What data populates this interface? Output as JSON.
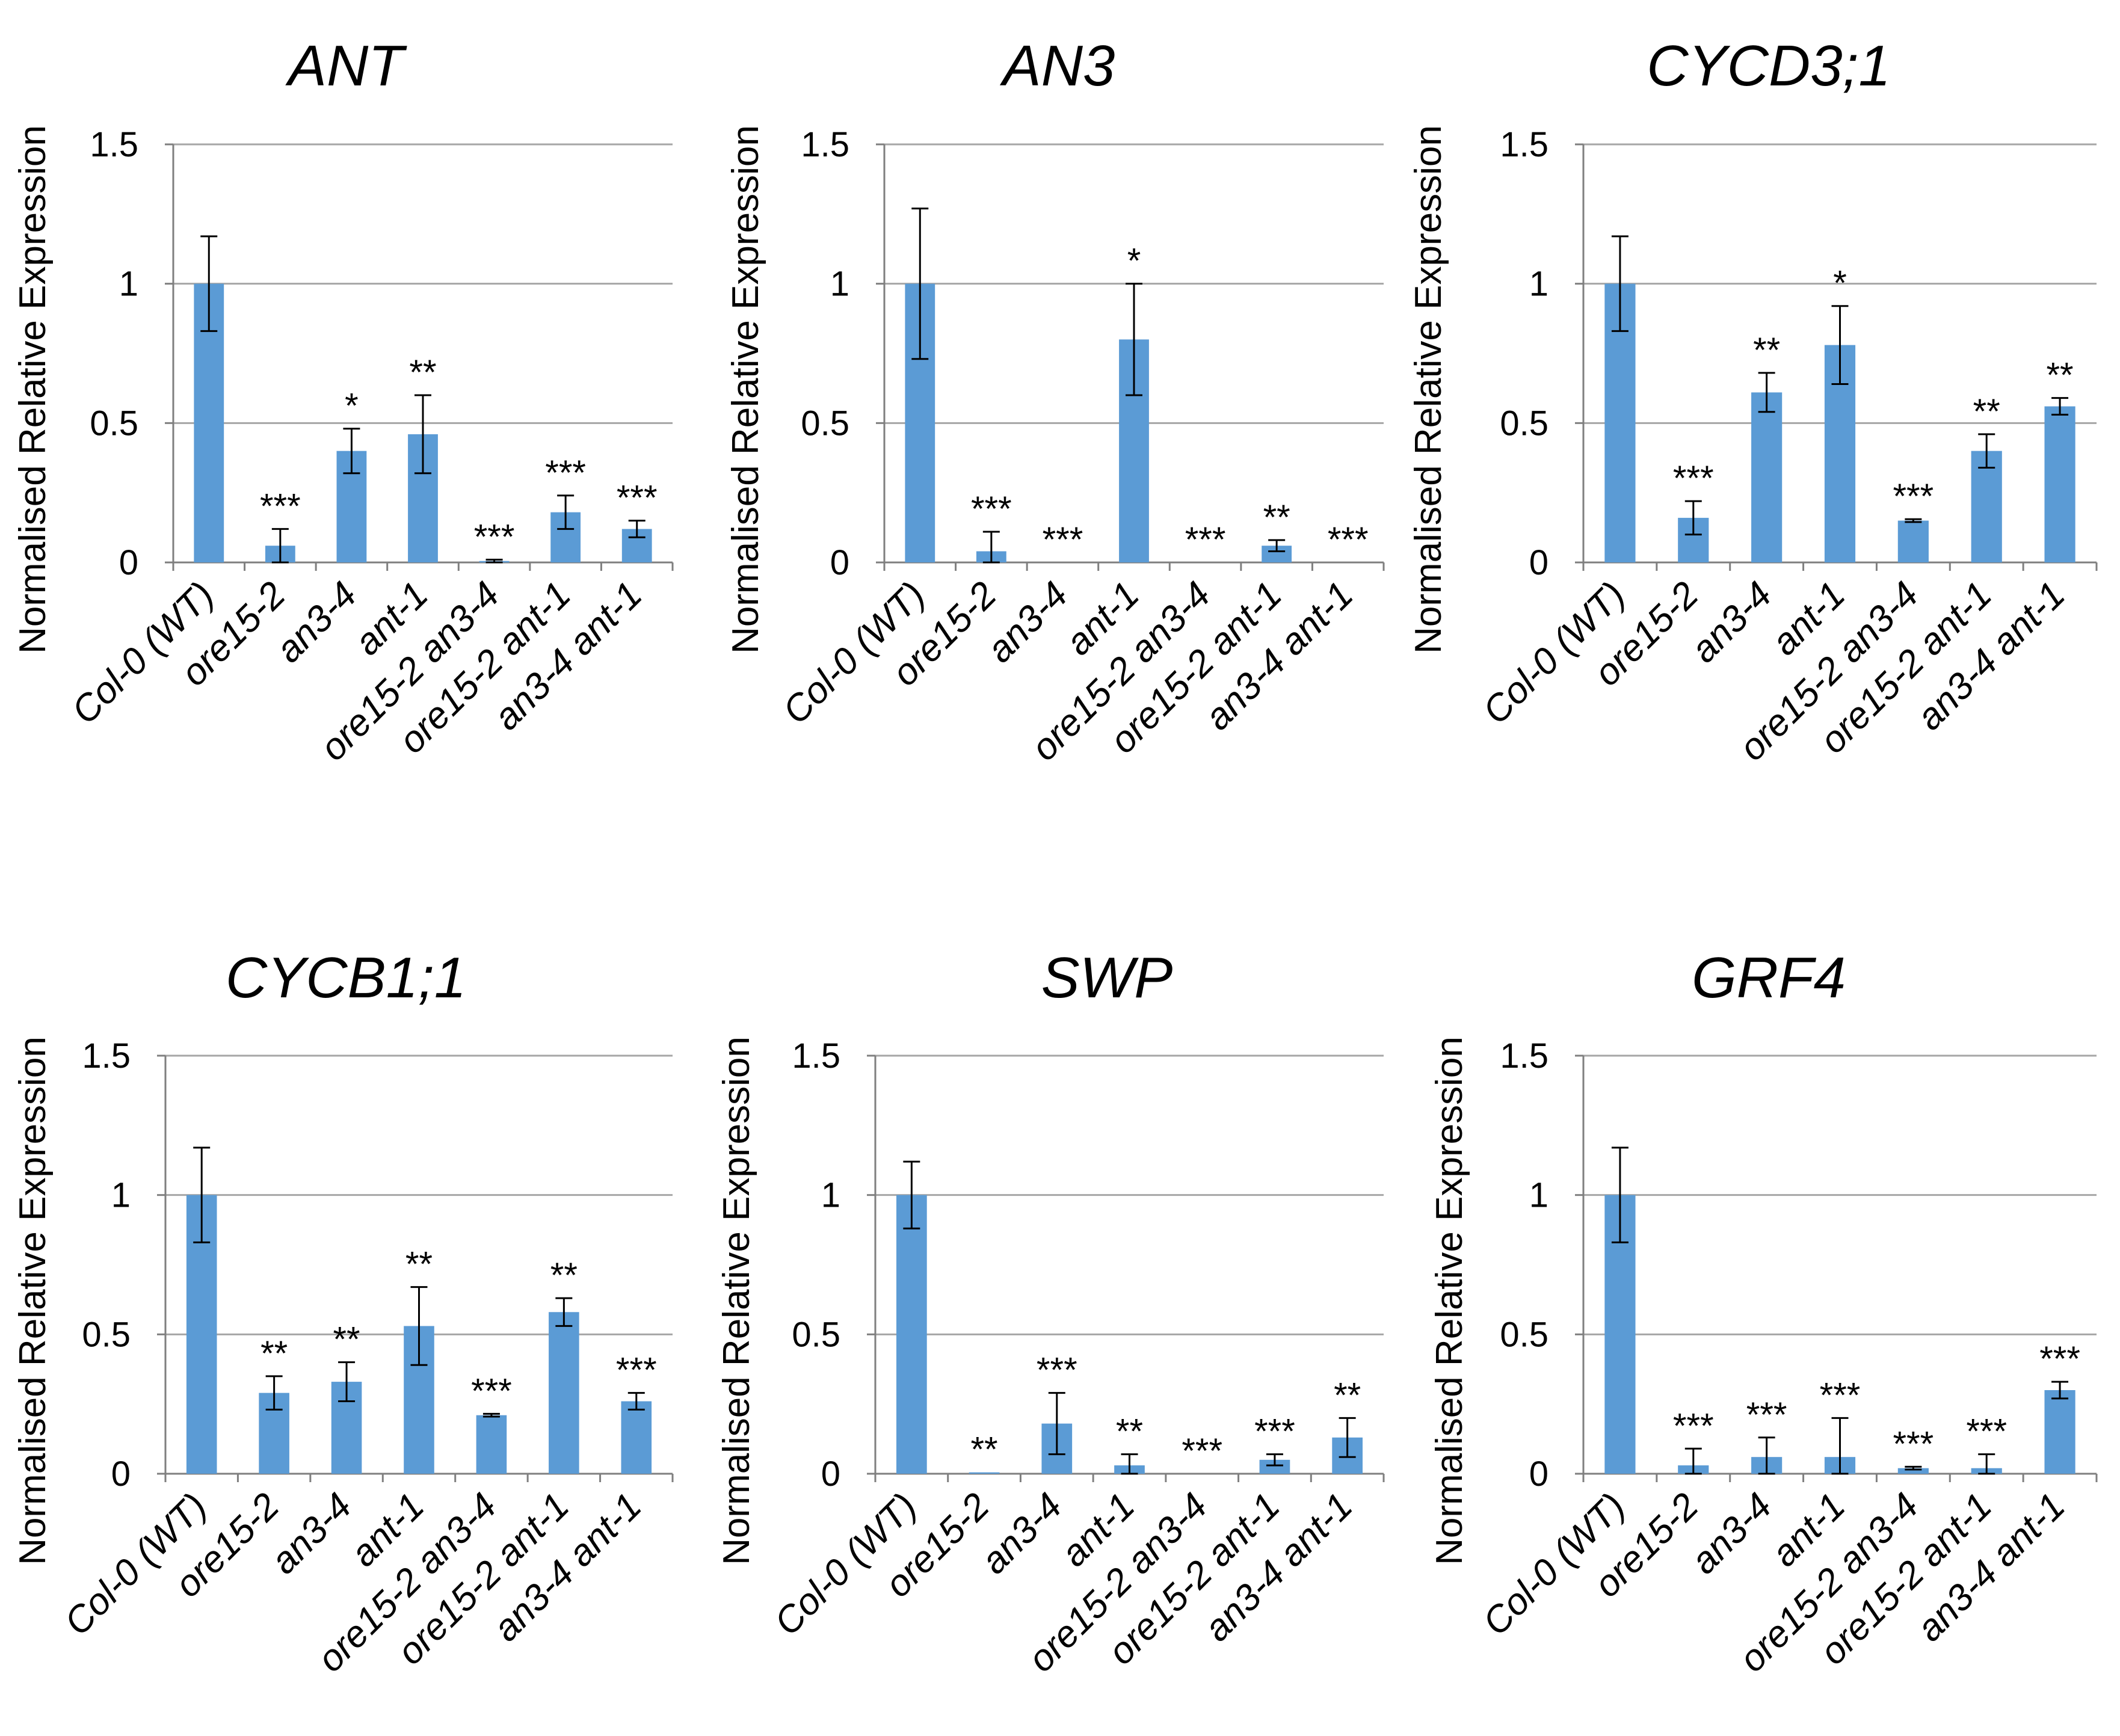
{
  "chart_data": [
    {
      "type": "bar",
      "title": "ANT",
      "ylabel": "Normalised Relative Expression",
      "xlabel": "",
      "ylim": [
        0,
        1.5
      ],
      "yticks": [
        "0",
        "0.5",
        "1",
        "1.5"
      ],
      "categories": [
        "Col-0 (WT)",
        "ore15-2",
        "an3-4",
        "ant-1",
        "ore15-2 an3-4",
        "ore15-2 ant-1",
        "an3-4 ant-1"
      ],
      "values": [
        1.0,
        0.06,
        0.4,
        0.46,
        0.005,
        0.18,
        0.12
      ],
      "errors": [
        0.17,
        0.06,
        0.08,
        0.14,
        0.005,
        0.06,
        0.03
      ],
      "significance": [
        "",
        "***",
        "*",
        "**",
        "***",
        "***",
        "***"
      ],
      "color": "#5b9bd5",
      "grid": true
    },
    {
      "type": "bar",
      "title": "AN3",
      "ylabel": "Normalised Relative Expression",
      "xlabel": "",
      "ylim": [
        0,
        1.5
      ],
      "yticks": [
        "0",
        "0.5",
        "1",
        "1.5"
      ],
      "categories": [
        "Col-0 (WT)",
        "ore15-2",
        "an3-4",
        "ant-1",
        "ore15-2 an3-4",
        "ore15-2 ant-1",
        "an3-4 ant-1"
      ],
      "values": [
        1.0,
        0.04,
        0.0,
        0.8,
        0.0,
        0.06,
        0.0
      ],
      "errors": [
        0.27,
        0.07,
        0.0,
        0.2,
        0.0,
        0.02,
        0.0
      ],
      "significance": [
        "",
        "***",
        "***",
        "*",
        "***",
        "**",
        "***"
      ],
      "color": "#5b9bd5",
      "grid": true
    },
    {
      "type": "bar",
      "title": "CYCD3;1",
      "ylabel": "Normalised Relative Expression",
      "xlabel": "",
      "ylim": [
        0,
        1.5
      ],
      "yticks": [
        "0",
        "0.5",
        "1",
        "1.5"
      ],
      "categories": [
        "Col-0 (WT)",
        "ore15-2",
        "an3-4",
        "ant-1",
        "ore15-2 an3-4",
        "ore15-2 ant-1",
        "an3-4 ant-1"
      ],
      "values": [
        1.0,
        0.16,
        0.61,
        0.78,
        0.15,
        0.4,
        0.56
      ],
      "errors": [
        0.17,
        0.06,
        0.07,
        0.14,
        0.005,
        0.06,
        0.03
      ],
      "significance": [
        "",
        "***",
        "**",
        "*",
        "***",
        "**",
        "**"
      ],
      "color": "#5b9bd5",
      "grid": true
    },
    {
      "type": "bar",
      "title": "CYCB1;1",
      "ylabel": "Normalised Relative Expression",
      "xlabel": "",
      "ylim": [
        0,
        1.5
      ],
      "yticks": [
        "0",
        "0.5",
        "1",
        "1.5"
      ],
      "categories": [
        "Col-0 (WT)",
        "ore15-2",
        "an3-4",
        "ant-1",
        "ore15-2 an3-4",
        "ore15-2 ant-1",
        "an3-4 ant-1"
      ],
      "values": [
        1.0,
        0.29,
        0.33,
        0.53,
        0.21,
        0.58,
        0.26
      ],
      "errors": [
        0.17,
        0.06,
        0.07,
        0.14,
        0.005,
        0.05,
        0.03
      ],
      "significance": [
        "",
        "**",
        "**",
        "**",
        "***",
        "**",
        "***"
      ],
      "color": "#5b9bd5",
      "grid": true
    },
    {
      "type": "bar",
      "title": "SWP",
      "ylabel": "Normalised Relative Expression",
      "xlabel": "",
      "ylim": [
        0,
        1.5
      ],
      "yticks": [
        "0",
        "0.5",
        "1",
        "1.5"
      ],
      "categories": [
        "Col-0 (WT)",
        "ore15-2",
        "an3-4",
        "ant-1",
        "ore15-2 an3-4",
        "ore15-2 ant-1",
        "an3-4 ant-1"
      ],
      "values": [
        1.0,
        0.005,
        0.18,
        0.03,
        0.0,
        0.05,
        0.13
      ],
      "errors": [
        0.12,
        0.0,
        0.11,
        0.04,
        0.0,
        0.02,
        0.07
      ],
      "significance": [
        "",
        "**",
        "***",
        "**",
        "***",
        "***",
        "**"
      ],
      "color": "#5b9bd5",
      "grid": true
    },
    {
      "type": "bar",
      "title": "GRF4",
      "ylabel": "Normalised Relative Expression",
      "xlabel": "",
      "ylim": [
        0,
        1.5
      ],
      "yticks": [
        "0",
        "0.5",
        "1",
        "1.5"
      ],
      "categories": [
        "Col-0 (WT)",
        "ore15-2",
        "an3-4",
        "ant-1",
        "ore15-2 an3-4",
        "ore15-2 ant-1",
        "an3-4 ant-1"
      ],
      "values": [
        1.0,
        0.03,
        0.06,
        0.06,
        0.02,
        0.02,
        0.3
      ],
      "errors": [
        0.17,
        0.06,
        0.07,
        0.14,
        0.005,
        0.05,
        0.03
      ],
      "significance": [
        "",
        "***",
        "***",
        "***",
        "***",
        "***",
        "***"
      ],
      "color": "#5b9bd5",
      "grid": true
    }
  ]
}
